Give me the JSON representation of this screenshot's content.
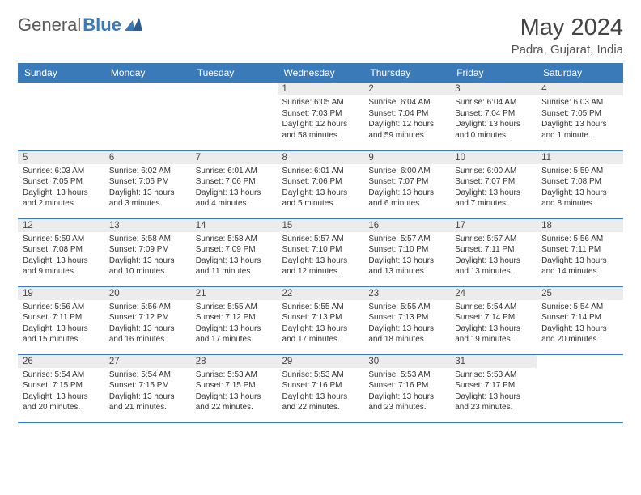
{
  "logo": {
    "text_gray": "General",
    "text_blue": "Blue"
  },
  "header": {
    "month_title": "May 2024",
    "location": "Padra, Gujarat, India"
  },
  "colors": {
    "header_bg": "#3a7ab8",
    "header_text": "#ffffff",
    "daynum_bg": "#ececec",
    "border": "#3a7ab8",
    "page_bg": "#ffffff"
  },
  "weekdays": [
    "Sunday",
    "Monday",
    "Tuesday",
    "Wednesday",
    "Thursday",
    "Friday",
    "Saturday"
  ],
  "weeks": [
    [
      null,
      null,
      null,
      {
        "n": "1",
        "sr": "6:05 AM",
        "ss": "7:03 PM",
        "dl": "12 hours and 58 minutes."
      },
      {
        "n": "2",
        "sr": "6:04 AM",
        "ss": "7:04 PM",
        "dl": "12 hours and 59 minutes."
      },
      {
        "n": "3",
        "sr": "6:04 AM",
        "ss": "7:04 PM",
        "dl": "13 hours and 0 minutes."
      },
      {
        "n": "4",
        "sr": "6:03 AM",
        "ss": "7:05 PM",
        "dl": "13 hours and 1 minute."
      }
    ],
    [
      {
        "n": "5",
        "sr": "6:03 AM",
        "ss": "7:05 PM",
        "dl": "13 hours and 2 minutes."
      },
      {
        "n": "6",
        "sr": "6:02 AM",
        "ss": "7:06 PM",
        "dl": "13 hours and 3 minutes."
      },
      {
        "n": "7",
        "sr": "6:01 AM",
        "ss": "7:06 PM",
        "dl": "13 hours and 4 minutes."
      },
      {
        "n": "8",
        "sr": "6:01 AM",
        "ss": "7:06 PM",
        "dl": "13 hours and 5 minutes."
      },
      {
        "n": "9",
        "sr": "6:00 AM",
        "ss": "7:07 PM",
        "dl": "13 hours and 6 minutes."
      },
      {
        "n": "10",
        "sr": "6:00 AM",
        "ss": "7:07 PM",
        "dl": "13 hours and 7 minutes."
      },
      {
        "n": "11",
        "sr": "5:59 AM",
        "ss": "7:08 PM",
        "dl": "13 hours and 8 minutes."
      }
    ],
    [
      {
        "n": "12",
        "sr": "5:59 AM",
        "ss": "7:08 PM",
        "dl": "13 hours and 9 minutes."
      },
      {
        "n": "13",
        "sr": "5:58 AM",
        "ss": "7:09 PM",
        "dl": "13 hours and 10 minutes."
      },
      {
        "n": "14",
        "sr": "5:58 AM",
        "ss": "7:09 PM",
        "dl": "13 hours and 11 minutes."
      },
      {
        "n": "15",
        "sr": "5:57 AM",
        "ss": "7:10 PM",
        "dl": "13 hours and 12 minutes."
      },
      {
        "n": "16",
        "sr": "5:57 AM",
        "ss": "7:10 PM",
        "dl": "13 hours and 13 minutes."
      },
      {
        "n": "17",
        "sr": "5:57 AM",
        "ss": "7:11 PM",
        "dl": "13 hours and 13 minutes."
      },
      {
        "n": "18",
        "sr": "5:56 AM",
        "ss": "7:11 PM",
        "dl": "13 hours and 14 minutes."
      }
    ],
    [
      {
        "n": "19",
        "sr": "5:56 AM",
        "ss": "7:11 PM",
        "dl": "13 hours and 15 minutes."
      },
      {
        "n": "20",
        "sr": "5:56 AM",
        "ss": "7:12 PM",
        "dl": "13 hours and 16 minutes."
      },
      {
        "n": "21",
        "sr": "5:55 AM",
        "ss": "7:12 PM",
        "dl": "13 hours and 17 minutes."
      },
      {
        "n": "22",
        "sr": "5:55 AM",
        "ss": "7:13 PM",
        "dl": "13 hours and 17 minutes."
      },
      {
        "n": "23",
        "sr": "5:55 AM",
        "ss": "7:13 PM",
        "dl": "13 hours and 18 minutes."
      },
      {
        "n": "24",
        "sr": "5:54 AM",
        "ss": "7:14 PM",
        "dl": "13 hours and 19 minutes."
      },
      {
        "n": "25",
        "sr": "5:54 AM",
        "ss": "7:14 PM",
        "dl": "13 hours and 20 minutes."
      }
    ],
    [
      {
        "n": "26",
        "sr": "5:54 AM",
        "ss": "7:15 PM",
        "dl": "13 hours and 20 minutes."
      },
      {
        "n": "27",
        "sr": "5:54 AM",
        "ss": "7:15 PM",
        "dl": "13 hours and 21 minutes."
      },
      {
        "n": "28",
        "sr": "5:53 AM",
        "ss": "7:15 PM",
        "dl": "13 hours and 22 minutes."
      },
      {
        "n": "29",
        "sr": "5:53 AM",
        "ss": "7:16 PM",
        "dl": "13 hours and 22 minutes."
      },
      {
        "n": "30",
        "sr": "5:53 AM",
        "ss": "7:16 PM",
        "dl": "13 hours and 23 minutes."
      },
      {
        "n": "31",
        "sr": "5:53 AM",
        "ss": "7:17 PM",
        "dl": "13 hours and 23 minutes."
      },
      null
    ]
  ],
  "labels": {
    "sunrise": "Sunrise: ",
    "sunset": "Sunset: ",
    "daylight": "Daylight: "
  }
}
